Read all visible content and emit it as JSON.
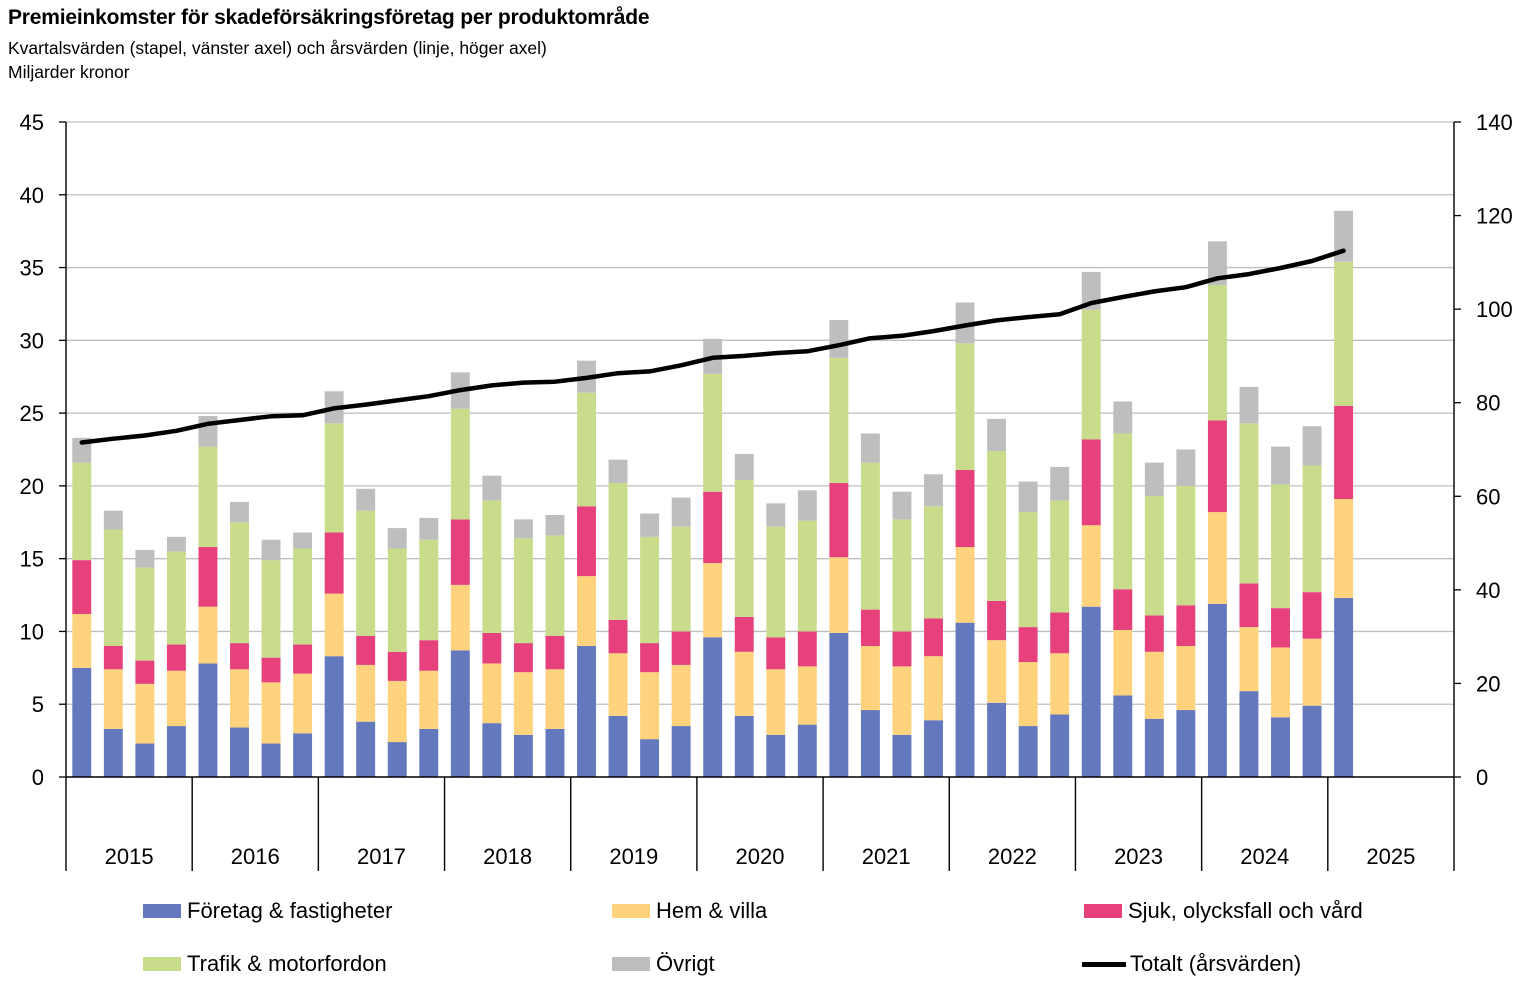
{
  "title": "Premieinkomster för skadeförsäkringsföretag per produktområde",
  "subtitle": "Kvartalsvärden (stapel, vänster axel) och årsvärden (linje, höger axel)",
  "unit_label": "Miljarder kronor",
  "colors": {
    "foretag": "#6478BE",
    "hem": "#FFD27D",
    "sjuk": "#E6417D",
    "trafik": "#C8DC8C",
    "ovrigt": "#BEBEBE",
    "totalt": "#000000",
    "grid": "#BFBFBF"
  },
  "legend": [
    {
      "key": "foretag",
      "label": "Företag & fastigheter",
      "type": "box"
    },
    {
      "key": "hem",
      "label": "Hem & villa",
      "type": "box"
    },
    {
      "key": "sjuk",
      "label": "Sjuk, olycksfall och vård",
      "type": "box"
    },
    {
      "key": "trafik",
      "label": "Trafik & motorfordon",
      "type": "box"
    },
    {
      "key": "ovrigt",
      "label": "Övrigt",
      "type": "box"
    },
    {
      "key": "totalt",
      "label": "Totalt (årsvärden)",
      "type": "line"
    }
  ],
  "chart_data": {
    "type": "bar",
    "stacked": true,
    "years": [
      "2015",
      "2016",
      "2017",
      "2018",
      "2019",
      "2020",
      "2021",
      "2022",
      "2023",
      "2024",
      "2025"
    ],
    "quarters_per_year": 4,
    "left_axis": {
      "min": 0,
      "max": 45,
      "step": 5,
      "ticks": [
        "0",
        "5",
        "10",
        "15",
        "20",
        "25",
        "30",
        "35",
        "40",
        "45"
      ]
    },
    "right_axis": {
      "min": 0,
      "max": 140,
      "step": 20,
      "ticks": [
        "0",
        "20",
        "40",
        "60",
        "80",
        "100",
        "120",
        "140"
      ]
    },
    "grid": true,
    "legend_position": "bottom",
    "series": [
      {
        "key": "foretag",
        "name": "Företag & fastigheter",
        "values": [
          7.5,
          3.3,
          2.3,
          3.5,
          7.8,
          3.4,
          2.3,
          3.0,
          8.3,
          3.8,
          2.4,
          3.3,
          8.7,
          3.7,
          2.9,
          3.3,
          9.0,
          4.2,
          2.6,
          3.5,
          9.6,
          4.2,
          2.9,
          3.6,
          9.9,
          4.6,
          2.9,
          3.9,
          10.6,
          5.1,
          3.5,
          4.3,
          11.7,
          5.6,
          4.0,
          4.6,
          11.9,
          5.9,
          4.1,
          4.9,
          12.3
        ]
      },
      {
        "key": "hem",
        "name": "Hem & villa",
        "values": [
          3.7,
          4.1,
          4.1,
          3.8,
          3.9,
          4.0,
          4.2,
          4.1,
          4.3,
          3.9,
          4.2,
          4.0,
          4.5,
          4.1,
          4.3,
          4.1,
          4.8,
          4.3,
          4.6,
          4.2,
          5.1,
          4.4,
          4.5,
          4.0,
          5.2,
          4.4,
          4.7,
          4.4,
          5.2,
          4.3,
          4.4,
          4.2,
          5.6,
          4.5,
          4.6,
          4.4,
          6.3,
          4.4,
          4.8,
          4.6,
          6.8
        ]
      },
      {
        "key": "sjuk",
        "name": "Sjuk, olycksfall och vård",
        "values": [
          3.7,
          1.6,
          1.6,
          1.8,
          4.1,
          1.8,
          1.7,
          2.0,
          4.2,
          2.0,
          2.0,
          2.1,
          4.5,
          2.1,
          2.0,
          2.3,
          4.8,
          2.3,
          2.0,
          2.3,
          4.9,
          2.4,
          2.2,
          2.4,
          5.1,
          2.5,
          2.4,
          2.6,
          5.3,
          2.7,
          2.4,
          2.8,
          5.9,
          2.8,
          2.5,
          2.8,
          6.3,
          3.0,
          2.7,
          3.2,
          6.4
        ]
      },
      {
        "key": "trafik",
        "name": "Trafik & motorfordon",
        "values": [
          6.7,
          8.0,
          6.4,
          6.4,
          6.9,
          8.3,
          6.7,
          6.6,
          7.5,
          8.6,
          7.1,
          6.9,
          7.6,
          9.1,
          7.2,
          6.9,
          7.8,
          9.4,
          7.3,
          7.2,
          8.1,
          9.4,
          7.6,
          7.6,
          8.6,
          10.1,
          7.7,
          7.7,
          8.7,
          10.3,
          7.9,
          7.7,
          8.9,
          10.7,
          8.2,
          8.2,
          9.3,
          11.0,
          8.5,
          8.7,
          9.9
        ]
      },
      {
        "key": "ovrigt",
        "name": "Övrigt",
        "values": [
          1.7,
          1.3,
          1.2,
          1.0,
          2.1,
          1.4,
          1.4,
          1.1,
          2.2,
          1.5,
          1.4,
          1.5,
          2.5,
          1.7,
          1.3,
          1.4,
          2.2,
          1.6,
          1.6,
          2.0,
          2.4,
          1.8,
          1.6,
          2.1,
          2.6,
          2.0,
          1.9,
          2.2,
          2.8,
          2.2,
          2.1,
          2.3,
          2.6,
          2.2,
          2.3,
          2.5,
          3.0,
          2.5,
          2.6,
          2.7,
          3.5
        ]
      }
    ],
    "line": {
      "key": "totalt",
      "name": "Totalt (årsvärden)",
      "axis": "right",
      "values": [
        71.5,
        72.3,
        73.0,
        74.0,
        75.5,
        76.3,
        77.1,
        77.3,
        78.8,
        79.6,
        80.5,
        81.4,
        82.7,
        83.7,
        84.3,
        84.5,
        85.3,
        86.3,
        86.7,
        88.0,
        89.6,
        90.0,
        90.6,
        91.0,
        92.3,
        93.8,
        94.3,
        95.3,
        96.5,
        97.6,
        98.3,
        98.9,
        101.3,
        102.6,
        103.8,
        104.7,
        106.6,
        107.5,
        108.8,
        110.3,
        112.5
      ]
    }
  }
}
